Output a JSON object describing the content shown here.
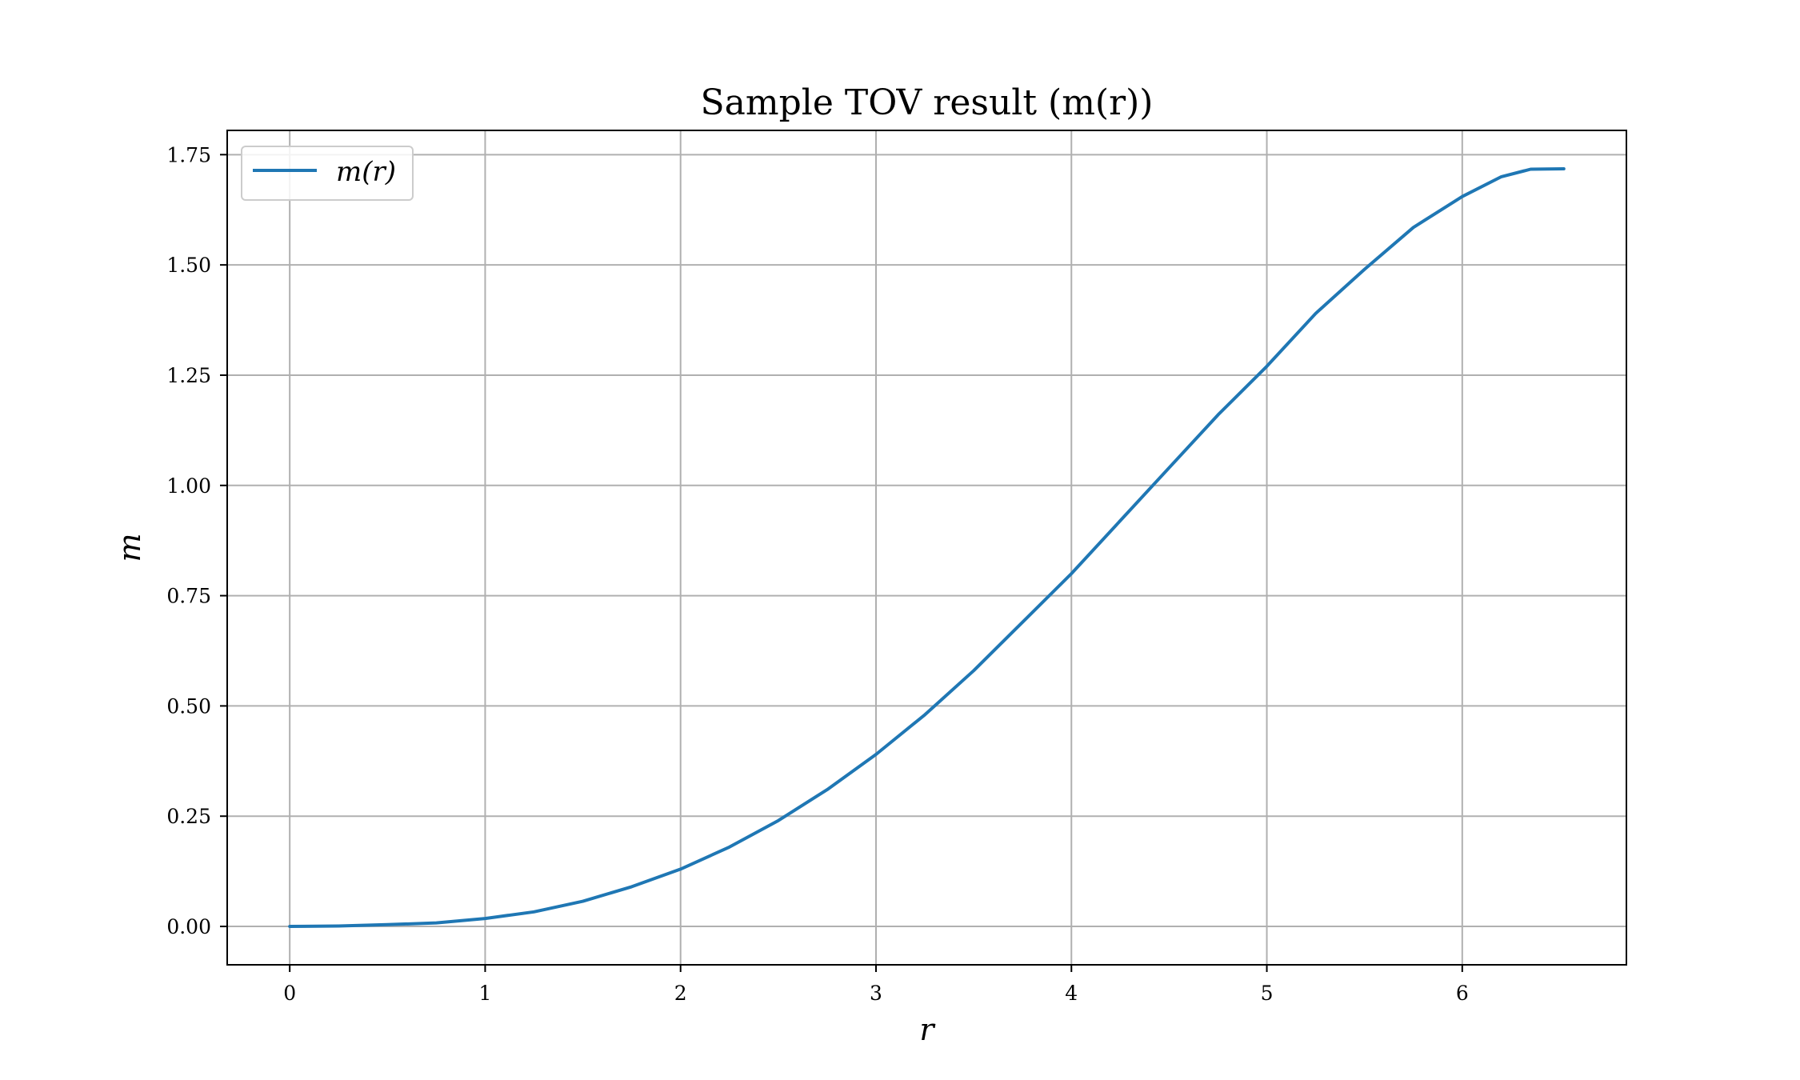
{
  "chart_data": {
    "type": "line",
    "title": "Sample TOV result (m(r))",
    "xlabel": "r",
    "ylabel": "m",
    "xlim": [
      -0.32,
      6.84
    ],
    "ylim": [
      -0.087,
      1.805
    ],
    "xticks": [
      0,
      1,
      2,
      3,
      4,
      5,
      6
    ],
    "xtick_labels": [
      "0",
      "1",
      "2",
      "3",
      "4",
      "5",
      "6"
    ],
    "yticks": [
      0,
      0.25,
      0.5,
      0.75,
      1.0,
      1.25,
      1.5,
      1.75
    ],
    "ytick_labels": [
      "0.00",
      "0.25",
      "0.50",
      "0.75",
      "1.00",
      "1.25",
      "1.50",
      "1.75"
    ],
    "grid": true,
    "legend_position": "top-left",
    "series": [
      {
        "name": "m(r)",
        "color": "#1f77b4",
        "x": [
          0,
          0.25,
          0.5,
          0.75,
          1.0,
          1.25,
          1.5,
          1.75,
          2.0,
          2.25,
          2.5,
          2.75,
          3.0,
          3.25,
          3.5,
          3.75,
          4.0,
          4.25,
          4.5,
          4.75,
          5.0,
          5.25,
          5.5,
          5.75,
          6.0,
          6.2,
          6.35,
          6.52
        ],
        "y": [
          0.0,
          0.001,
          0.004,
          0.008,
          0.018,
          0.033,
          0.057,
          0.09,
          0.13,
          0.18,
          0.24,
          0.31,
          0.39,
          0.48,
          0.58,
          0.69,
          0.8,
          0.92,
          1.04,
          1.16,
          1.27,
          1.39,
          1.49,
          1.585,
          1.655,
          1.7,
          1.717,
          1.718
        ]
      }
    ]
  }
}
